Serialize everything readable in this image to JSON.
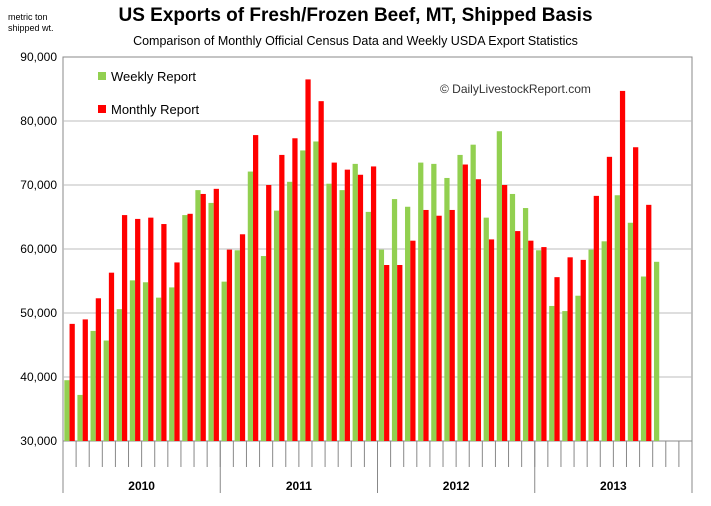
{
  "chart_data": {
    "type": "bar",
    "title": "US Exports of Fresh/Frozen Beef, MT, Shipped Basis",
    "subtitle": "Comparison of Monthly Official Census Data and Weekly USDA Export Statistics",
    "unit_label_line1": "metric ton",
    "unit_label_line2": "shipped wt.",
    "watermark": "© DailyLivestockReport.com",
    "ylim": [
      30000,
      90000
    ],
    "y_ticks": [
      "30,000",
      "40,000",
      "50,000",
      "60,000",
      "70,000",
      "80,000",
      "90,000"
    ],
    "y_tick_values": [
      30000,
      40000,
      50000,
      60000,
      70000,
      80000,
      90000
    ],
    "grid": true,
    "legend_position": "top-left",
    "years": [
      "2010",
      "2011",
      "2012",
      "2013"
    ],
    "months_per_year": 12,
    "series": [
      {
        "name": "Weekly Report",
        "color": "#92d050",
        "values": [
          39500,
          37200,
          47200,
          45700,
          50600,
          55100,
          54800,
          52400,
          54000,
          65300,
          69200,
          67200,
          54900,
          59800,
          72100,
          58900,
          66000,
          70500,
          75400,
          76800,
          70200,
          69200,
          73300,
          65800,
          59900,
          67800,
          66600,
          73500,
          73300,
          71100,
          74700,
          76300,
          64900,
          78400,
          68600,
          66400,
          59800,
          51100,
          50300,
          52700,
          59900,
          61200,
          68400,
          64100,
          55700,
          58000,
          null,
          null
        ]
      },
      {
        "name": "Monthly Report",
        "color": "#ff0000",
        "values": [
          48300,
          49000,
          52300,
          56300,
          65300,
          64700,
          64900,
          63900,
          57900,
          65500,
          68600,
          69400,
          59900,
          62300,
          77800,
          70000,
          74700,
          77300,
          86500,
          83100,
          73500,
          72400,
          71600,
          72900,
          57500,
          57500,
          61300,
          66100,
          65200,
          66100,
          73200,
          70900,
          61500,
          70000,
          62800,
          61300,
          60300,
          55600,
          58700,
          58300,
          68300,
          74400,
          84700,
          75900,
          66900,
          null,
          null,
          null
        ]
      }
    ]
  }
}
